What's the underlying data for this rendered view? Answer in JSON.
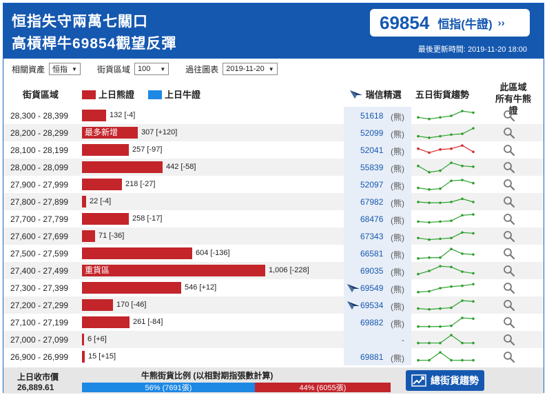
{
  "header": {
    "headline_line1": "恒指失守兩萬七關口",
    "headline_line2": "高槓桿牛69854觀望反彈",
    "quote_code": "69854",
    "quote_name": "恒指(牛證)",
    "quote_arrow": "››",
    "last_updated": "最後更新時間: 2019-11-20 18:00"
  },
  "filters": {
    "asset_label": "相關資產",
    "asset_value": "恒指",
    "range_label": "街貨區域",
    "range_value": "100",
    "history_label": "過往圖表",
    "history_value": "2019-11-20"
  },
  "table_header": {
    "range": "街貨區域",
    "bear_legend": "上日熊證",
    "bull_legend": "上日牛證",
    "pick": "瑞信精選",
    "trend": "五日街貨趨勢",
    "all_line1": "此區域",
    "all_line2": "所有牛熊證"
  },
  "colors": {
    "bear": "#c3252b",
    "bull": "#1e88e5",
    "brand": "#1558b0",
    "trend_up": "#2ca02c",
    "trend_down": "#d62728"
  },
  "rows": [
    {
      "range": "28,300 - 28,399",
      "value": 132,
      "count": "132 [-4]",
      "bar_label": "",
      "code": "51618",
      "kind": "(熊)",
      "pick": false,
      "trend": [
        3,
        2.6,
        3,
        3.4,
        4.6,
        4.2
      ],
      "trend_color": "#2ca02c"
    },
    {
      "range": "28,200 - 28,299",
      "value": 307,
      "count": "307 [+120]",
      "bar_label": "最多新增",
      "code": "52099",
      "kind": "(熊)",
      "pick": false,
      "trend": [
        2.6,
        2.2,
        2.6,
        3,
        3.2,
        4.6
      ],
      "trend_color": "#2ca02c"
    },
    {
      "range": "28,100 - 28,199",
      "value": 257,
      "count": "257 [-97]",
      "bar_label": "",
      "code": "52041",
      "kind": "(熊)",
      "pick": false,
      "trend": [
        3.8,
        2.8,
        3.6,
        3.8,
        4.6,
        3
      ],
      "trend_color": "#d62728"
    },
    {
      "range": "28,000 - 28,099",
      "value": 442,
      "count": "442 [-58]",
      "bar_label": "",
      "code": "55839",
      "kind": "(熊)",
      "pick": false,
      "trend": [
        3.8,
        2.2,
        2.6,
        4.6,
        3.8,
        3.6
      ],
      "trend_color": "#2ca02c"
    },
    {
      "range": "27,900 - 27,999",
      "value": 218,
      "count": "218 [-27]",
      "bar_label": "",
      "code": "52097",
      "kind": "(熊)",
      "pick": false,
      "trend": [
        2.6,
        2.2,
        2.4,
        4.4,
        4.6,
        3.8
      ],
      "trend_color": "#2ca02c"
    },
    {
      "range": "27,800 - 27,899",
      "value": 22,
      "count": "22 [-4]",
      "bar_label": "",
      "code": "67982",
      "kind": "(熊)",
      "pick": false,
      "trend": [
        3.4,
        3.2,
        3.2,
        3.4,
        4.2,
        3.4
      ],
      "trend_color": "#2ca02c"
    },
    {
      "range": "27,700 - 27,799",
      "value": 258,
      "count": "258 [-17]",
      "bar_label": "",
      "code": "68476",
      "kind": "(熊)",
      "pick": false,
      "trend": [
        2.8,
        2.6,
        2.8,
        3,
        4.4,
        4.6
      ],
      "trend_color": "#2ca02c"
    },
    {
      "range": "27,600 - 27,699",
      "value": 71,
      "count": "71 [-36]",
      "bar_label": "",
      "code": "67343",
      "kind": "(熊)",
      "pick": false,
      "trend": [
        3,
        2.6,
        2.8,
        3,
        4.4,
        4.2
      ],
      "trend_color": "#2ca02c"
    },
    {
      "range": "27,500 - 27,599",
      "value": 604,
      "count": "604 [-136]",
      "bar_label": "",
      "code": "66581",
      "kind": "(熊)",
      "pick": false,
      "trend": [
        2.2,
        2.4,
        2.4,
        4.6,
        3.4,
        3.2
      ],
      "trend_color": "#2ca02c"
    },
    {
      "range": "27,400 - 27,499",
      "value": 1006,
      "count": "1,006 [-228]",
      "bar_label": "重貨區",
      "code": "69035",
      "kind": "(熊)",
      "pick": false,
      "trend": [
        2.6,
        3.4,
        4.6,
        4.4,
        3.2,
        2.8
      ],
      "trend_color": "#2ca02c"
    },
    {
      "range": "27,300 - 27,399",
      "value": 546,
      "count": "546 [+12]",
      "bar_label": "",
      "code": "69549",
      "kind": "(熊)",
      "pick": true,
      "trend": [
        2.4,
        2.6,
        3.4,
        3.8,
        4,
        4.4
      ],
      "trend_color": "#2ca02c"
    },
    {
      "range": "27,200 - 27,299",
      "value": 170,
      "count": "170 [-46]",
      "bar_label": "",
      "code": "69534",
      "kind": "(熊)",
      "pick": true,
      "trend": [
        2.6,
        2.4,
        2.6,
        2.8,
        4.6,
        4.4
      ],
      "trend_color": "#2ca02c"
    },
    {
      "range": "27,100 - 27,199",
      "value": 261,
      "count": "261 [-84]",
      "bar_label": "",
      "code": "69882",
      "kind": "(熊)",
      "pick": false,
      "trend": [
        2.4,
        2.4,
        2.4,
        2.6,
        4.6,
        4.4
      ],
      "trend_color": "#2ca02c"
    },
    {
      "range": "27,000 - 27,099",
      "value": 6,
      "count": "6 [+6]",
      "bar_label": "",
      "code": "-",
      "kind": "",
      "pick": false,
      "trend": [
        2.6,
        2.6,
        2.6,
        4.6,
        2.6,
        2.6
      ],
      "trend_color": "#2ca02c"
    },
    {
      "range": "26,900 - 26,999",
      "value": 15,
      "count": "15 [+15]",
      "bar_label": "",
      "code": "69881",
      "kind": "(熊)",
      "pick": false,
      "trend": [
        2.6,
        2.6,
        4.6,
        2.6,
        2.6,
        2.6
      ],
      "trend_color": "#2ca02c"
    }
  ],
  "footer": {
    "close_label": "上日收市價",
    "close_value": "26,889.61",
    "ratio_title": "牛熊街貨比例 (以相對期指張數計算)",
    "bull_pct": 56,
    "bull_text": "56% (7691張)",
    "bear_pct": 44,
    "bear_text": "44% (6055張)",
    "trend_button": "總街貨趨勢"
  }
}
